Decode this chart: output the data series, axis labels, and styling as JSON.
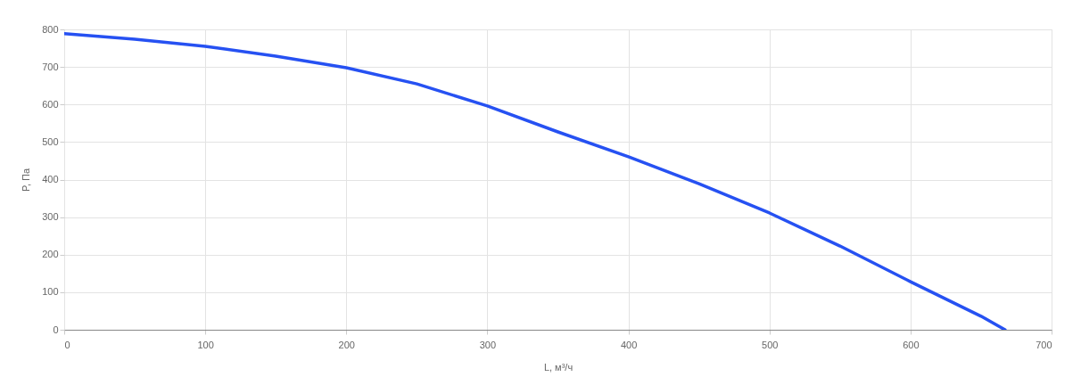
{
  "chart_data": {
    "type": "line",
    "xlabel": "L, м³/ч",
    "ylabel": "P, Па",
    "series": [
      {
        "color": "#2651f2",
        "x": [
          0,
          50,
          100,
          150,
          200,
          250,
          300,
          350,
          400,
          450,
          500,
          550,
          600,
          650,
          667
        ],
        "values": [
          789,
          774,
          755,
          729,
          698,
          655,
          596,
          527,
          461,
          389,
          311,
          223,
          128,
          36,
          0
        ]
      }
    ],
    "xlim": [
      0,
      700
    ],
    "xticks": [
      0,
      100,
      200,
      300,
      400,
      500,
      600,
      700
    ],
    "ylim": [
      0,
      800
    ],
    "yticks": [
      0,
      100,
      200,
      300,
      400,
      500,
      600,
      700,
      800
    ],
    "grid": true,
    "marker": "none",
    "line_style": "solid"
  }
}
